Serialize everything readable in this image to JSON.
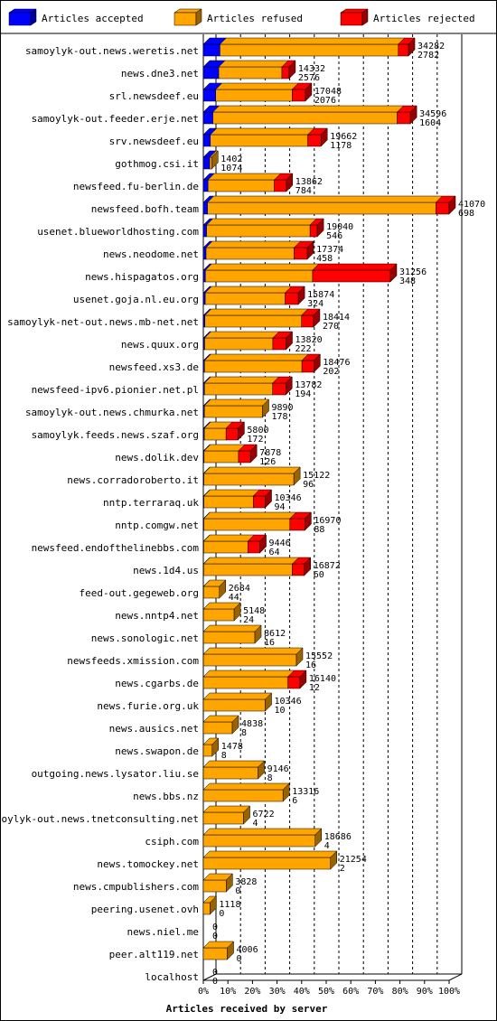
{
  "chart_data": {
    "type": "bar",
    "orientation": "horizontal",
    "stacked": true,
    "xlabel": "Articles received by server",
    "xlim": [
      0,
      41070
    ],
    "ticks": [
      "0%",
      "10%",
      "20%",
      "30%",
      "40%",
      "50%",
      "60%",
      "70%",
      "80%",
      "90%",
      "100%"
    ],
    "legend_position": "top",
    "series": [
      {
        "name": "Articles accepted",
        "color": "#0000ff"
      },
      {
        "name": "Articles refused",
        "color": "#ffa500"
      },
      {
        "name": "Articles rejected",
        "color": "#ff0000"
      }
    ],
    "rows": [
      {
        "host": "samoylyk-out.news.weretis.net",
        "total": "34282",
        "accepted": "2782",
        "a": 2782,
        "r": 29800,
        "j": 1700
      },
      {
        "host": "news.dne3.net",
        "total": "14332",
        "accepted": "2576",
        "a": 2576,
        "r": 10556,
        "j": 1200
      },
      {
        "host": "srl.newsdeef.eu",
        "total": "17048",
        "accepted": "2076",
        "a": 2076,
        "r": 12772,
        "j": 2200
      },
      {
        "host": "samoylyk-out.feeder.erje.net",
        "total": "34596",
        "accepted": "1604",
        "a": 1604,
        "r": 30792,
        "j": 2200
      },
      {
        "host": "srv.newsdeef.eu",
        "total": "19662",
        "accepted": "1178",
        "a": 1178,
        "r": 16284,
        "j": 2200
      },
      {
        "host": "gothmog.csi.it",
        "total": "1402",
        "accepted": "1074",
        "a": 1074,
        "r": 328,
        "j": 0
      },
      {
        "host": "newsfeed.fu-berlin.de",
        "total": "13862",
        "accepted": "784",
        "a": 784,
        "r": 11078,
        "j": 2000
      },
      {
        "host": "newsfeed.bofh.team",
        "total": "41070",
        "accepted": "698",
        "a": 698,
        "r": 38172,
        "j": 2200
      },
      {
        "host": "usenet.blueworldhosting.com",
        "total": "19040",
        "accepted": "546",
        "a": 546,
        "r": 17294,
        "j": 1200
      },
      {
        "host": "news.neodome.net",
        "total": "17374",
        "accepted": "458",
        "a": 458,
        "r": 14716,
        "j": 2200
      },
      {
        "host": "news.hispagatos.org",
        "total": "31256",
        "accepted": "348",
        "a": 348,
        "r": 17908,
        "j": 13000
      },
      {
        "host": "usenet.goja.nl.eu.org",
        "total": "15874",
        "accepted": "324",
        "a": 324,
        "r": 13350,
        "j": 2200
      },
      {
        "host": "samoylyk-net-out.news.mb-net.net",
        "total": "18414",
        "accepted": "270",
        "a": 270,
        "r": 16144,
        "j": 2000
      },
      {
        "host": "news.quux.org",
        "total": "13820",
        "accepted": "222",
        "a": 222,
        "r": 11398,
        "j": 2200
      },
      {
        "host": "newsfeed.xs3.de",
        "total": "18476",
        "accepted": "202",
        "a": 202,
        "r": 16274,
        "j": 2000
      },
      {
        "host": "newsfeed-ipv6.pionier.net.pl",
        "total": "13782",
        "accepted": "194",
        "a": 194,
        "r": 11388,
        "j": 2200
      },
      {
        "host": "samoylyk-out.news.chmurka.net",
        "total": "9890",
        "accepted": "178",
        "a": 178,
        "r": 9712,
        "j": 0
      },
      {
        "host": "samoylyk.feeds.news.szaf.org",
        "total": "5800",
        "accepted": "172",
        "a": 172,
        "r": 3628,
        "j": 2000
      },
      {
        "host": "news.dolik.dev",
        "total": "7878",
        "accepted": "126",
        "a": 126,
        "r": 5752,
        "j": 2000
      },
      {
        "host": "news.corradoroberto.it",
        "total": "15122",
        "accepted": "96",
        "a": 96,
        "r": 15026,
        "j": 0
      },
      {
        "host": "nntp.terraraq.uk",
        "total": "10346",
        "accepted": "94",
        "a": 94,
        "r": 8252,
        "j": 2000
      },
      {
        "host": "nntp.comgw.net",
        "total": "16970",
        "accepted": "88",
        "a": 88,
        "r": 14382,
        "j": 2500
      },
      {
        "host": "newsfeed.endofthelinebbs.com",
        "total": "9446",
        "accepted": "64",
        "a": 64,
        "r": 7382,
        "j": 2000
      },
      {
        "host": "news.1d4.us",
        "total": "16872",
        "accepted": "60",
        "a": 60,
        "r": 14812,
        "j": 2000
      },
      {
        "host": "feed-out.gegeweb.org",
        "total": "2684",
        "accepted": "44",
        "a": 44,
        "r": 2640,
        "j": 0
      },
      {
        "host": "news.nntp4.net",
        "total": "5148",
        "accepted": "24",
        "a": 24,
        "r": 5124,
        "j": 0
      },
      {
        "host": "news.sonologic.net",
        "total": "8612",
        "accepted": "16",
        "a": 16,
        "r": 8596,
        "j": 0
      },
      {
        "host": "newsfeeds.xmission.com",
        "total": "15552",
        "accepted": "16",
        "a": 16,
        "r": 15536,
        "j": 0
      },
      {
        "host": "news.cgarbs.de",
        "total": "16140",
        "accepted": "12",
        "a": 12,
        "r": 14128,
        "j": 2000
      },
      {
        "host": "news.furie.org.uk",
        "total": "10346",
        "accepted": "10",
        "a": 10,
        "r": 10336,
        "j": 0
      },
      {
        "host": "news.ausics.net",
        "total": "4838",
        "accepted": "8",
        "a": 8,
        "r": 4830,
        "j": 0
      },
      {
        "host": "news.swapon.de",
        "total": "1478",
        "accepted": "8",
        "a": 8,
        "r": 1470,
        "j": 0
      },
      {
        "host": "outgoing.news.lysator.liu.se",
        "total": "9146",
        "accepted": "8",
        "a": 8,
        "r": 9138,
        "j": 0
      },
      {
        "host": "news.bbs.nz",
        "total": "13316",
        "accepted": "6",
        "a": 6,
        "r": 13310,
        "j": 0
      },
      {
        "host": "samoylyk-out.news.tnetconsulting.net",
        "total": "6722",
        "accepted": "4",
        "a": 4,
        "r": 6718,
        "j": 0
      },
      {
        "host": "csiph.com",
        "total": "18686",
        "accepted": "4",
        "a": 4,
        "r": 18682,
        "j": 0
      },
      {
        "host": "news.tomockey.net",
        "total": "21254",
        "accepted": "2",
        "a": 2,
        "r": 21252,
        "j": 0
      },
      {
        "host": "news.cmpublishers.com",
        "total": "3828",
        "accepted": "0",
        "a": 0,
        "r": 3828,
        "j": 0
      },
      {
        "host": "peering.usenet.ovh",
        "total": "1118",
        "accepted": "0",
        "a": 0,
        "r": 1118,
        "j": 0
      },
      {
        "host": "news.niel.me",
        "total": "0",
        "accepted": "0",
        "a": 0,
        "r": 0,
        "j": 0
      },
      {
        "host": "peer.alt119.net",
        "total": "4006",
        "accepted": "0",
        "a": 0,
        "r": 4006,
        "j": 0
      },
      {
        "host": "localhost",
        "total": "0",
        "accepted": "0",
        "a": 0,
        "r": 0,
        "j": 0
      }
    ]
  }
}
